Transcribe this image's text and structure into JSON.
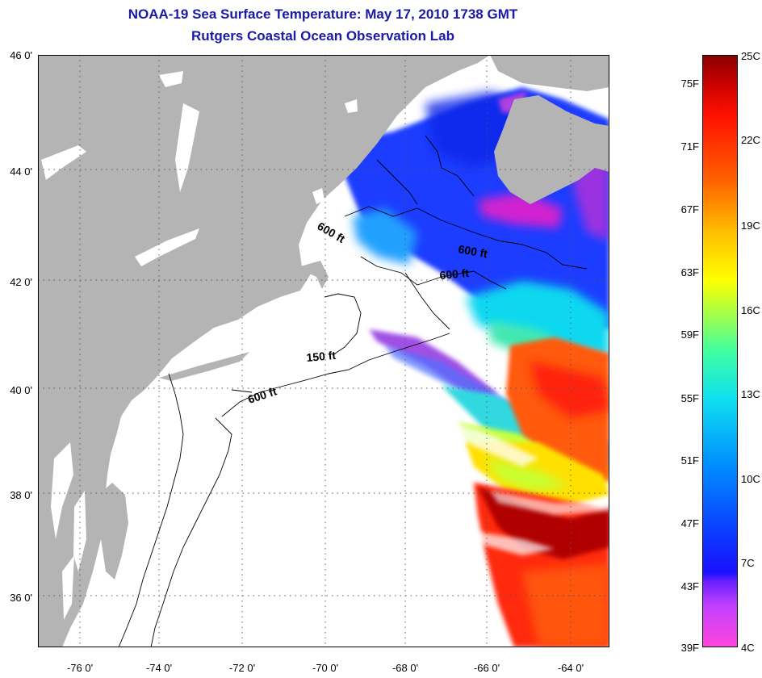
{
  "header": {
    "title": "NOAA-19 Sea Surface Temperature:  May 17, 2010 1738 GMT",
    "subtitle": "Rutgers Coastal Ocean Observation Lab"
  },
  "map": {
    "lat_labels": [
      "46 0'",
      "44 0'",
      "42 0'",
      "40 0'",
      "38 0'",
      "36 0'"
    ],
    "lon_labels": [
      "-76 0'",
      "-74 0'",
      "-72 0'",
      "-70 0'",
      "-68 0'",
      "-66 0'",
      "-64 0'"
    ],
    "contour_labels": [
      "600 ft",
      "600 ft",
      "600 ft",
      "150 ft",
      "600 ft"
    ],
    "land_color": "#b4b4b4",
    "no_data_color": "#ffffff"
  },
  "colorbar": {
    "fahrenheit_labels": [
      "75F",
      "71F",
      "67F",
      "63F",
      "59F",
      "55F",
      "51F",
      "47F",
      "43F",
      "39F"
    ],
    "celsius_labels": [
      "25C",
      "22C",
      "19C",
      "16C",
      "13C",
      "10C",
      "7C",
      "4C"
    ]
  }
}
